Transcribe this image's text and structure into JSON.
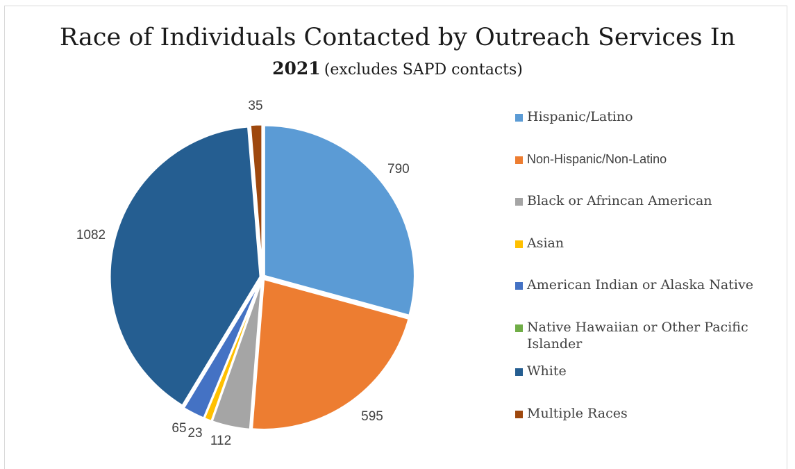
{
  "chart_data": {
    "type": "pie",
    "title": "Race of Individuals Contacted by Outreach Services In",
    "subtitle_year": "2021",
    "subtitle_note": "(excludes SAPD contacts)",
    "legend_position": "right",
    "categories": [
      "Hispanic/Latino",
      "Non-Hispanic/Non-Latino",
      "Black or Afrincan American",
      "Asian",
      "American Indian or Alaska Native",
      "Native Hawaiian or Other Pacific Islander",
      "White",
      "Multiple Races"
    ],
    "values": [
      790,
      595,
      112,
      23,
      65,
      0,
      1082,
      35
    ],
    "value_labels": [
      "790",
      "595",
      "112",
      "23",
      "65",
      "",
      "1082",
      "35"
    ],
    "colors": [
      "#5b9bd5",
      "#ed7d31",
      "#a5a5a5",
      "#ffc000",
      "#4472c4",
      "#70ad47",
      "#255e91",
      "#9e480e"
    ]
  }
}
